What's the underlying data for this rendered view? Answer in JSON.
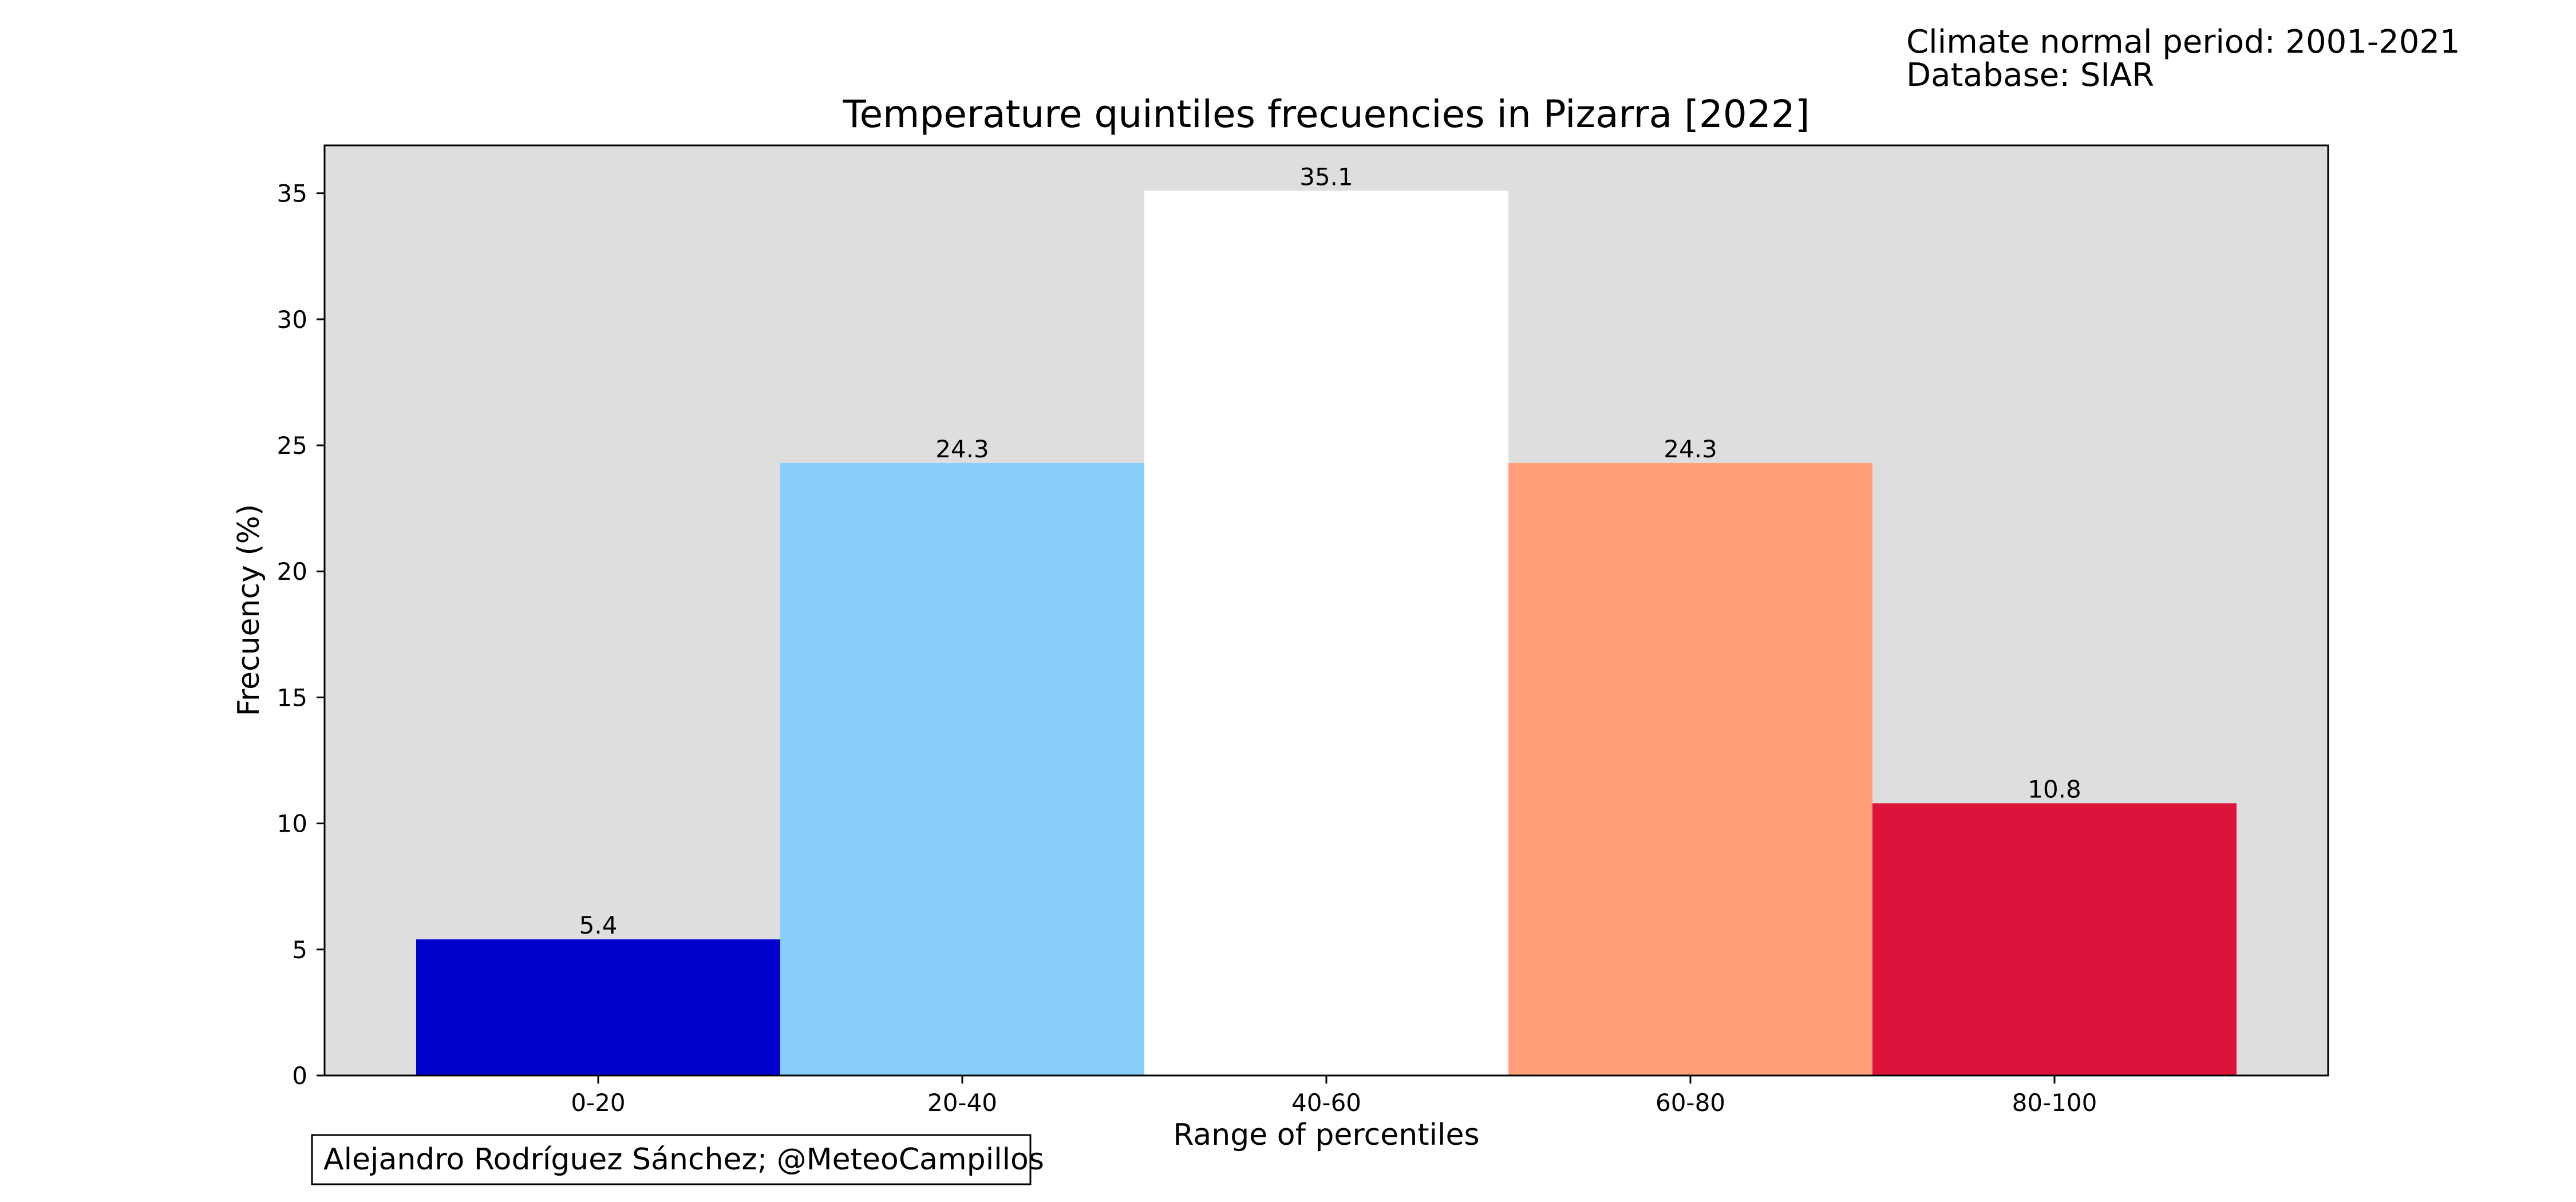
{
  "header": {
    "normal_period": "Climate normal period: 2001-2021",
    "database": "Database: SIAR"
  },
  "credit": "Alejandro Rodríguez Sánchez; @MeteoCampillos",
  "chart_data": {
    "type": "bar",
    "title": "Temperature quintiles frecuencies in Pizarra [2022]",
    "xlabel": "Range of percentiles",
    "ylabel": "Frecuency (%)",
    "categories": [
      "0-20",
      "20-40",
      "40-60",
      "60-80",
      "80-100"
    ],
    "values": [
      5.4,
      24.3,
      35.1,
      24.3,
      10.8
    ],
    "value_labels": [
      "5.4",
      "24.3",
      "35.1",
      "24.3",
      "10.8"
    ],
    "colors": [
      "#0000cd",
      "#87cefa",
      "#ffffff",
      "#ffa07a",
      "#dc143c"
    ],
    "ylim": [
      0,
      36.9
    ],
    "yticks": [
      0,
      5,
      10,
      15,
      20,
      25,
      30,
      35
    ],
    "plot_background": "#dedede",
    "grid": false,
    "legend": "none"
  }
}
